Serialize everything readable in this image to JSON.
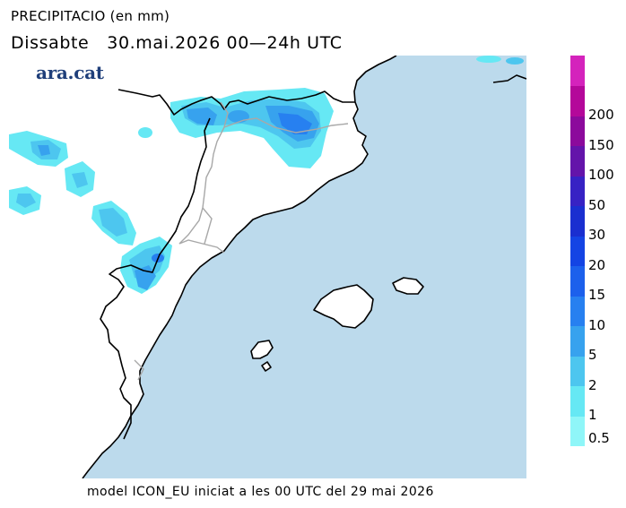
{
  "header": {
    "title": "PRECIPITACIO (en mm)",
    "subtitle": "Dissabte   30.mai.2026 00—24h UTC",
    "brand": "ara.cat"
  },
  "footer": "model ICON_EU iniciat a les 00 UTC del 29 mai 2026",
  "colors": {
    "sea": "#bcdaec",
    "land": "#ffffff",
    "coast": "#000000",
    "border": "#a8a8a8"
  },
  "legend": {
    "bins": [
      {
        "label": "0.5",
        "color": "#8ff6f8"
      },
      {
        "label": "1",
        "color": "#66e8f4"
      },
      {
        "label": "2",
        "color": "#4dc6ef"
      },
      {
        "label": "5",
        "color": "#37a2ee"
      },
      {
        "label": "10",
        "color": "#2780f0"
      },
      {
        "label": "15",
        "color": "#1c60ec"
      },
      {
        "label": "20",
        "color": "#1444e4"
      },
      {
        "label": "30",
        "color": "#1a2fd0"
      },
      {
        "label": "50",
        "color": "#3722c4"
      },
      {
        "label": "100",
        "color": "#6414aa"
      },
      {
        "label": "150",
        "color": "#8c0a9c"
      },
      {
        "label": "200",
        "color": "#b4089a"
      },
      {
        "label": "",
        "color": "#d423bc"
      }
    ]
  }
}
